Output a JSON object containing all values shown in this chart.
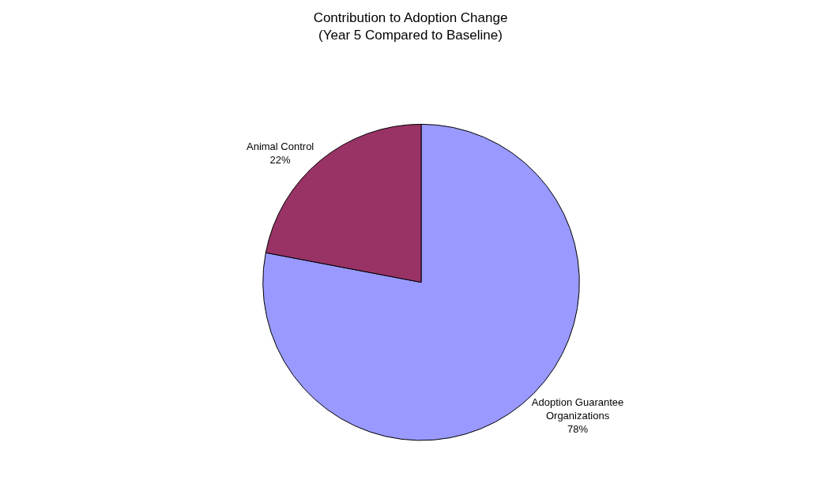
{
  "chart_data": {
    "type": "pie",
    "title": "Contribution to Adoption Change\n(Year 5 Compared to Baseline)",
    "categories": [
      "Adoption Guarantee Organizations",
      "Animal Control"
    ],
    "values": [
      78,
      22
    ],
    "value_labels": [
      "78%",
      "22%"
    ],
    "colors": [
      "#9999ff",
      "#993366"
    ],
    "legend": false
  }
}
